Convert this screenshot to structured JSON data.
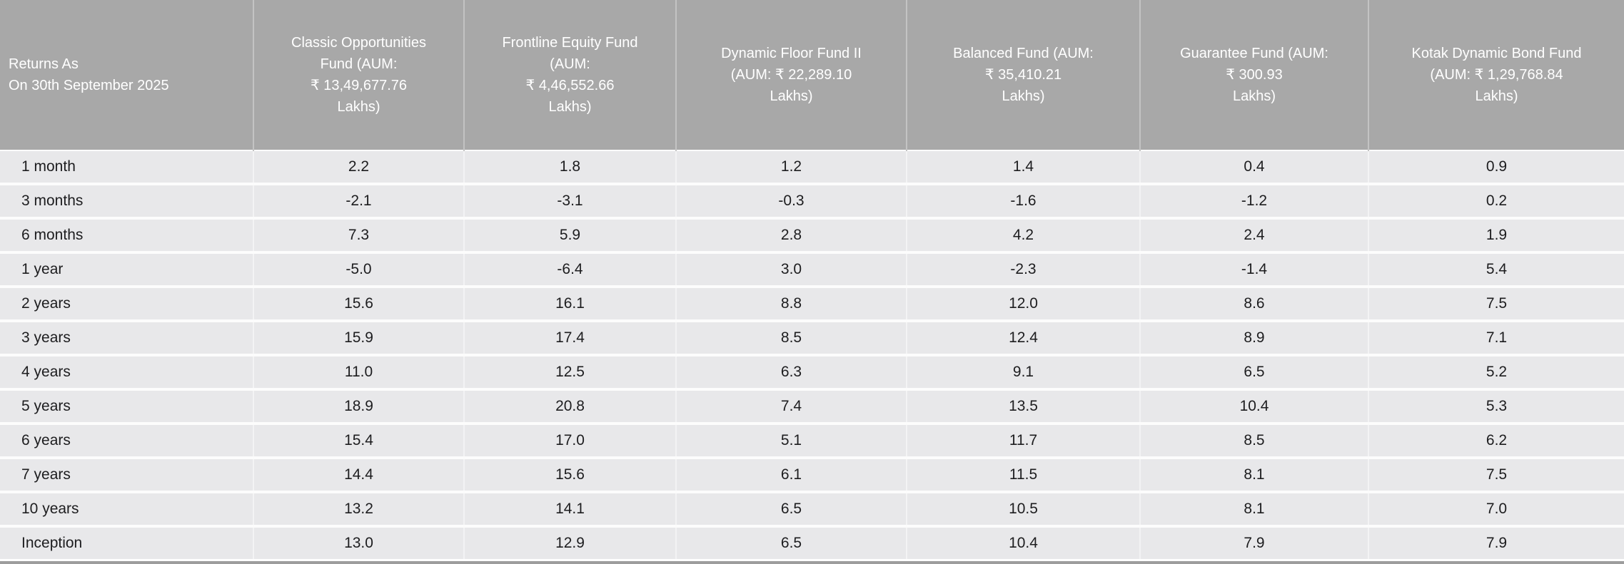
{
  "colors": {
    "header_bg": "#a8a8a8",
    "header_text": "#ffffff",
    "header_divider": "#c3c3c3",
    "row_bg": "#e8e8ea",
    "row_divider": "#fcfcfc",
    "column_divider": "#f3f3f4",
    "body_text": "#1d1d1f",
    "bottom_bar": "#9d9d9d"
  },
  "table": {
    "header": {
      "period_label": "Returns As\nOn 30th September 2025",
      "funds": [
        "Classic Opportunities\nFund (AUM:\n₹ 13,49,677.76\nLakhs)",
        "Frontline Equity Fund\n(AUM:\n₹ 4,46,552.66\nLakhs)",
        "Dynamic Floor Fund II\n(AUM: ₹ 22,289.10\nLakhs)",
        "Balanced Fund (AUM:\n₹ 35,410.21\nLakhs)",
        "Guarantee Fund (AUM:\n₹ 300.93\nLakhs)",
        "Kotak Dynamic Bond Fund\n(AUM: ₹ 1,29,768.84\nLakhs)"
      ]
    },
    "rows": [
      {
        "period": "1 month",
        "values": [
          "2.2",
          "1.8",
          "1.2",
          "1.4",
          "0.4",
          "0.9"
        ]
      },
      {
        "period": "3 months",
        "values": [
          "-2.1",
          "-3.1",
          "-0.3",
          "-1.6",
          "-1.2",
          "0.2"
        ]
      },
      {
        "period": "6 months",
        "values": [
          "7.3",
          "5.9",
          "2.8",
          "4.2",
          "2.4",
          "1.9"
        ]
      },
      {
        "period": "1 year",
        "values": [
          "-5.0",
          "-6.4",
          "3.0",
          "-2.3",
          "-1.4",
          "5.4"
        ]
      },
      {
        "period": "2 years",
        "values": [
          "15.6",
          "16.1",
          "8.8",
          "12.0",
          "8.6",
          "7.5"
        ]
      },
      {
        "period": "3 years",
        "values": [
          "15.9",
          "17.4",
          "8.5",
          "12.4",
          "8.9",
          "7.1"
        ]
      },
      {
        "period": "4 years",
        "values": [
          "11.0",
          "12.5",
          "6.3",
          "9.1",
          "6.5",
          "5.2"
        ]
      },
      {
        "period": "5 years",
        "values": [
          "18.9",
          "20.8",
          "7.4",
          "13.5",
          "10.4",
          "5.3"
        ]
      },
      {
        "period": "6 years",
        "values": [
          "15.4",
          "17.0",
          "5.1",
          "11.7",
          "8.5",
          "6.2"
        ]
      },
      {
        "period": "7 years",
        "values": [
          "14.4",
          "15.6",
          "6.1",
          "11.5",
          "8.1",
          "7.5"
        ]
      },
      {
        "period": "10 years",
        "values": [
          "13.2",
          "14.1",
          "6.5",
          "10.5",
          "8.1",
          "7.0"
        ]
      },
      {
        "period": "Inception",
        "values": [
          "13.0",
          "12.9",
          "6.5",
          "10.4",
          "7.9",
          "7.9"
        ]
      }
    ]
  },
  "chart_data": {
    "type": "table",
    "title": "Returns As On 30th September 2025",
    "columns": [
      "Returns As On 30th September 2025",
      "Classic Opportunities Fund (AUM: ₹ 13,49,677.76 Lakhs)",
      "Frontline Equity Fund (AUM: ₹ 4,46,552.66 Lakhs)",
      "Dynamic Floor Fund II (AUM: ₹ 22,289.10 Lakhs)",
      "Balanced Fund (AUM: ₹ 35,410.21 Lakhs)",
      "Guarantee Fund (AUM: ₹ 300.93 Lakhs)",
      "Kotak Dynamic Bond Fund (AUM: ₹ 1,29,768.84 Lakhs)"
    ],
    "periods": [
      "1 month",
      "3 months",
      "6 months",
      "1 year",
      "2 years",
      "3 years",
      "4 years",
      "5 years",
      "6 years",
      "7 years",
      "10 years",
      "Inception"
    ],
    "series": [
      {
        "name": "Classic Opportunities Fund",
        "aum": "₹ 13,49,677.76 Lakhs",
        "values": [
          2.2,
          -2.1,
          7.3,
          -5.0,
          15.6,
          15.9,
          11.0,
          18.9,
          15.4,
          14.4,
          13.2,
          13.0
        ]
      },
      {
        "name": "Frontline Equity Fund",
        "aum": "₹ 4,46,552.66 Lakhs",
        "values": [
          1.8,
          -3.1,
          5.9,
          -6.4,
          16.1,
          17.4,
          12.5,
          20.8,
          17.0,
          15.6,
          14.1,
          12.9
        ]
      },
      {
        "name": "Dynamic Floor Fund II",
        "aum": "₹ 22,289.10 Lakhs",
        "values": [
          1.2,
          -0.3,
          2.8,
          3.0,
          8.8,
          8.5,
          6.3,
          7.4,
          5.1,
          6.1,
          6.5,
          6.5
        ]
      },
      {
        "name": "Balanced Fund",
        "aum": "₹ 35,410.21 Lakhs",
        "values": [
          1.4,
          -1.6,
          4.2,
          -2.3,
          12.0,
          12.4,
          9.1,
          13.5,
          11.7,
          11.5,
          10.5,
          10.4
        ]
      },
      {
        "name": "Guarantee Fund",
        "aum": "₹ 300.93 Lakhs",
        "values": [
          0.4,
          -1.2,
          2.4,
          -1.4,
          8.6,
          8.9,
          6.5,
          10.4,
          8.5,
          8.1,
          8.1,
          7.9
        ]
      },
      {
        "name": "Kotak Dynamic Bond Fund",
        "aum": "₹ 1,29,768.84 Lakhs",
        "values": [
          0.9,
          0.2,
          1.9,
          5.4,
          7.5,
          7.1,
          5.2,
          5.3,
          6.2,
          7.5,
          7.0,
          7.9
        ]
      }
    ]
  }
}
